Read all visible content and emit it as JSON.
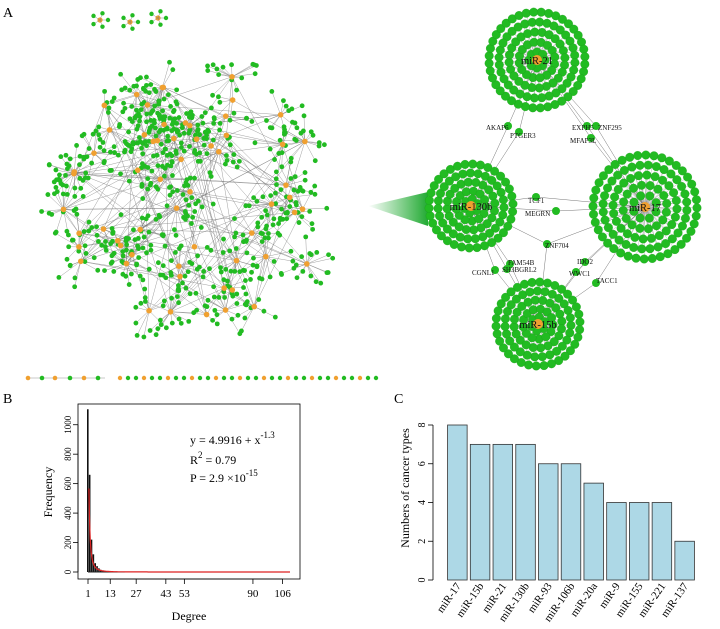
{
  "panels": {
    "a": "A",
    "b": "B",
    "c": "C"
  },
  "colors": {
    "gene_node": "#22bb22",
    "mirna_node": "#f0a030",
    "edge": "#777777",
    "fit_curve": "#dd2222",
    "bar_fill": "#add8e6"
  },
  "network": {
    "hubs": [
      "miR-21",
      "miR-130b",
      "miR-17",
      "miR-15b"
    ],
    "connector_genes": [
      "AKAP6",
      "PTGER3",
      "EXPH5",
      "ZNF295",
      "MFAP3L",
      "TCF1",
      "MEGRN",
      "ZNF704",
      "FAM54B",
      "SH3BGRL2",
      "CGNL1",
      "IDO2",
      "WWC1",
      "TACC1"
    ]
  },
  "degree_fit": {
    "equation_text": "y = 4.9916 + x",
    "exponent": "-1.3",
    "r2_label": "R",
    "r2_sup": "2",
    "r2_value": "= 0.79",
    "p_text": "P = 2.9 ×10",
    "p_exponent": "-15"
  },
  "chart_data": [
    {
      "type": "bar",
      "title": "",
      "xlabel": "Degree",
      "ylabel": "Frequency",
      "ylim": [
        0,
        1100
      ],
      "xlim": [
        1,
        110
      ],
      "x_ticks": [
        "1",
        "13",
        "27",
        "43",
        "53",
        "90",
        "106"
      ],
      "y_ticks": [
        "0",
        "200",
        "400",
        "600",
        "800",
        "1000"
      ],
      "categories": [
        1,
        2,
        3,
        4,
        5,
        6,
        7,
        8,
        9,
        10
      ],
      "values": [
        1105,
        660,
        220,
        120,
        60,
        40,
        25,
        15,
        10,
        8
      ],
      "fit": "power-law y = 4.9916 + x^-1.3"
    },
    {
      "type": "bar",
      "title": "",
      "xlabel": "",
      "ylabel": "Numbers of cancer types",
      "ylim": [
        0,
        8
      ],
      "y_ticks": [
        "0",
        "2",
        "4",
        "6",
        "8"
      ],
      "categories": [
        "miR-17",
        "miR-15b",
        "miR-21",
        "miR-130b",
        "miR-93",
        "miR-106b",
        "miR-20a",
        "miR-9",
        "miR-155",
        "miR-221",
        "miR-137"
      ],
      "values": [
        8,
        7,
        7,
        7,
        6,
        6,
        5,
        4,
        4,
        4,
        2
      ]
    }
  ]
}
